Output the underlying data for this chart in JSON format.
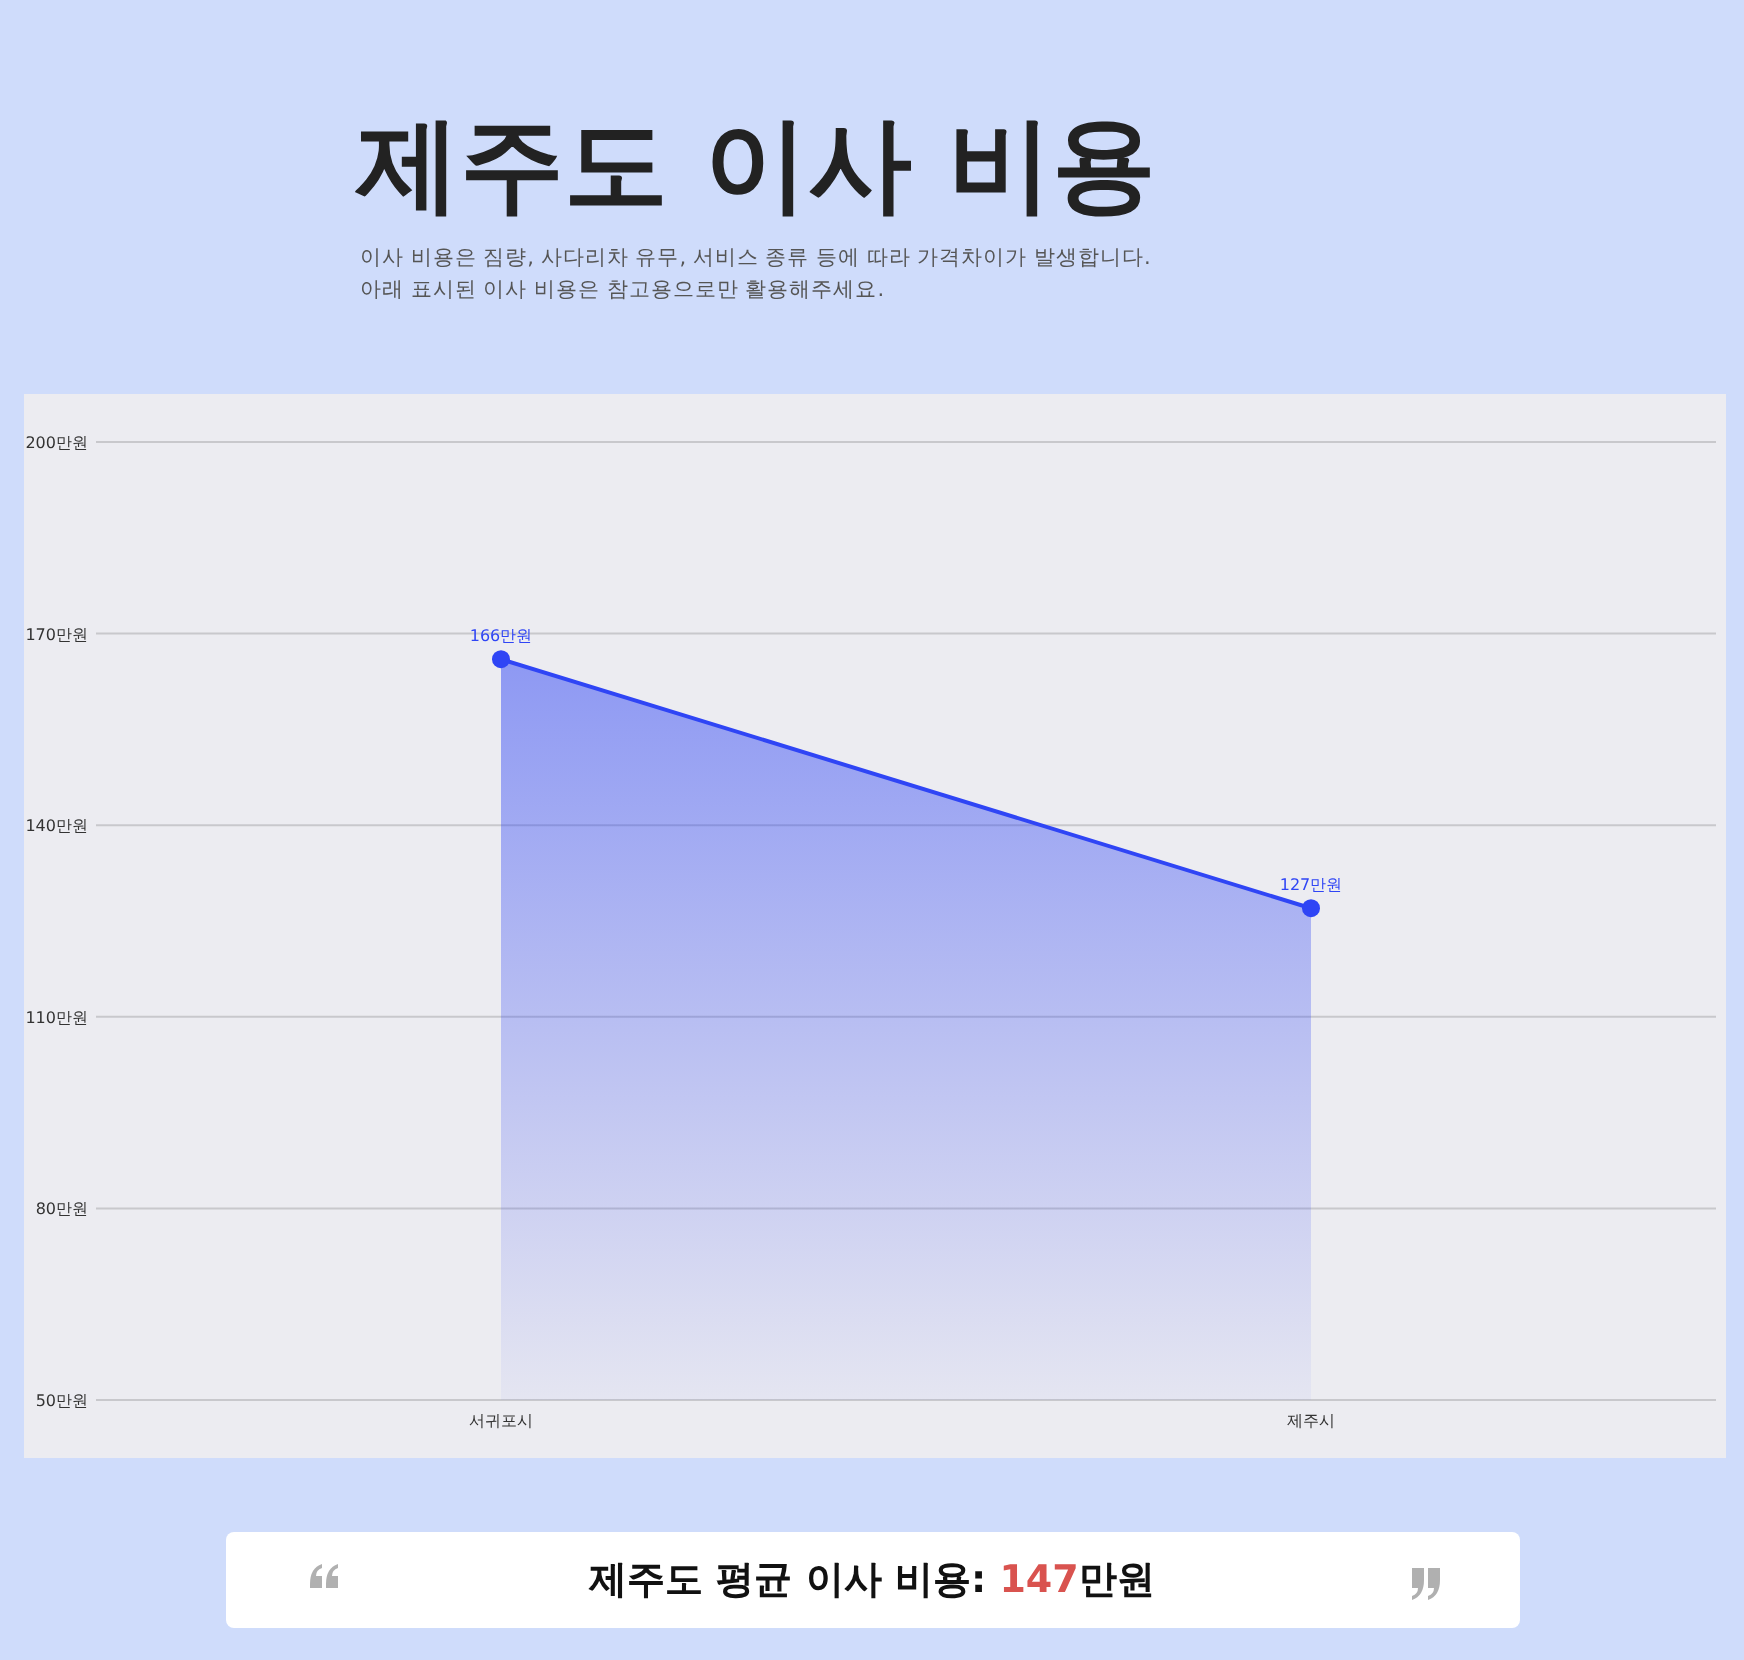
{
  "chart_data": {
    "type": "area",
    "title": "제주도 이사 비용",
    "subtitle": "이사 비용은 짐량, 사다리차 유무, 서비스 종류 등에 따라 가격차이가 발생합니다.\n아래 표시된 이사 비용은 참고용으로만 활용해주세요.",
    "categories": [
      "서귀포시",
      "제주시"
    ],
    "series": [
      {
        "color": "#2f45f5",
        "values": [
          166,
          127
        ],
        "value_labels": [
          "166만원",
          "127만원"
        ]
      }
    ],
    "ylim": [
      50,
      200
    ],
    "yticks": [
      {
        "value": 50,
        "label": "50만원"
      },
      {
        "value": 80,
        "label": "80만원"
      },
      {
        "value": 110,
        "label": "110만원"
      },
      {
        "value": 140,
        "label": "140만원"
      },
      {
        "value": 170,
        "label": "170만원"
      },
      {
        "value": 200,
        "label": "200만원"
      }
    ],
    "grid": "y",
    "marker": "circle",
    "annotations": [
      "제주도 평균 이사 비용: 147만원"
    ]
  }
}
